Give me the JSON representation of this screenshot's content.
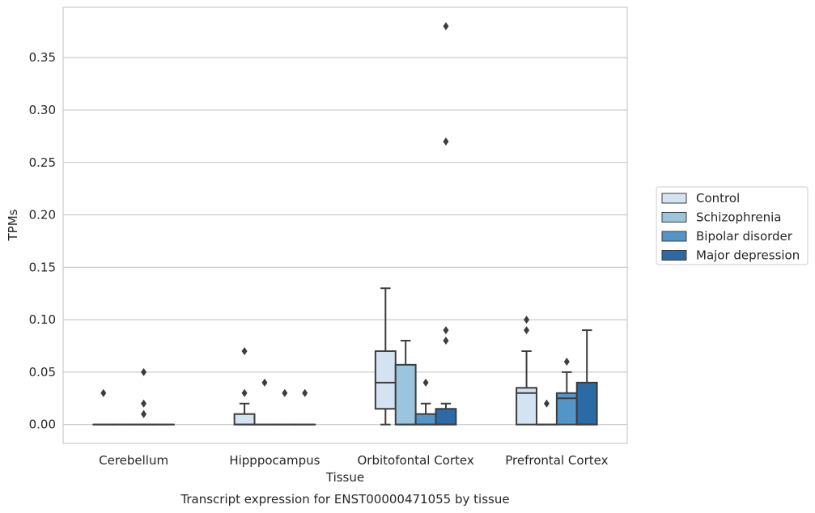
{
  "chart_data": {
    "type": "box",
    "title": "",
    "caption": "Transcript expression for ENST00000471055 by tissue",
    "xlabel": "Tissue",
    "ylabel": "TPMs",
    "ylim": [
      -0.018,
      0.398
    ],
    "yticks": [
      "0.00",
      "0.05",
      "0.10",
      "0.15",
      "0.20",
      "0.25",
      "0.30",
      "0.35"
    ],
    "grid": "horizontal",
    "legend_position": "right",
    "categories": [
      "Cerebellum",
      "Hipppocampus",
      "Orbitofontal Cortex",
      "Prefrontal Cortex"
    ],
    "series": [
      {
        "name": "Control",
        "color": "#d3e3f2",
        "boxes": [
          {
            "category": "Cerebellum",
            "whisker_low": 0,
            "q1": 0,
            "median": 0,
            "q3": 0,
            "whisker_high": 0,
            "outliers": [
              0.03
            ]
          },
          {
            "category": "Hipppocampus",
            "whisker_low": 0,
            "q1": 0,
            "median": 0,
            "q3": 0.01,
            "whisker_high": 0.02,
            "outliers": [
              0.03,
              0.07
            ]
          },
          {
            "category": "Orbitofontal Cortex",
            "whisker_low": 0,
            "q1": 0.015,
            "median": 0.04,
            "q3": 0.07,
            "whisker_high": 0.13,
            "outliers": []
          },
          {
            "category": "Prefrontal Cortex",
            "whisker_low": 0,
            "q1": 0,
            "median": 0.03,
            "q3": 0.035,
            "whisker_high": 0.07,
            "outliers": [
              0.09,
              0.1
            ]
          }
        ]
      },
      {
        "name": "Schizophrenia",
        "color": "#9bc5df",
        "boxes": [
          {
            "category": "Cerebellum",
            "whisker_low": 0,
            "q1": 0,
            "median": 0,
            "q3": 0,
            "whisker_high": 0,
            "outliers": []
          },
          {
            "category": "Hipppocampus",
            "whisker_low": 0,
            "q1": 0,
            "median": 0,
            "q3": 0,
            "whisker_high": 0,
            "outliers": [
              0.04
            ]
          },
          {
            "category": "Orbitofontal Cortex",
            "whisker_low": 0,
            "q1": 0,
            "median": 0,
            "q3": 0.057,
            "whisker_high": 0.08,
            "outliers": []
          },
          {
            "category": "Prefrontal Cortex",
            "whisker_low": 0,
            "q1": 0,
            "median": 0,
            "q3": 0,
            "whisker_high": 0,
            "outliers": [
              0.02
            ]
          }
        ]
      },
      {
        "name": "Bipolar disorder",
        "color": "#5495c7",
        "boxes": [
          {
            "category": "Cerebellum",
            "whisker_low": 0,
            "q1": 0,
            "median": 0,
            "q3": 0,
            "whisker_high": 0,
            "outliers": [
              0.01,
              0.02,
              0.05
            ]
          },
          {
            "category": "Hipppocampus",
            "whisker_low": 0,
            "q1": 0,
            "median": 0,
            "q3": 0,
            "whisker_high": 0,
            "outliers": [
              0.03
            ]
          },
          {
            "category": "Orbitofontal Cortex",
            "whisker_low": 0,
            "q1": 0,
            "median": 0,
            "q3": 0.01,
            "whisker_high": 0.02,
            "outliers": [
              0.04
            ]
          },
          {
            "category": "Prefrontal Cortex",
            "whisker_low": 0,
            "q1": 0,
            "median": 0.025,
            "q3": 0.03,
            "whisker_high": 0.05,
            "outliers": [
              0.06
            ]
          }
        ]
      },
      {
        "name": "Major depression",
        "color": "#2b6aa5",
        "boxes": [
          {
            "category": "Cerebellum",
            "whisker_low": 0,
            "q1": 0,
            "median": 0,
            "q3": 0,
            "whisker_high": 0,
            "outliers": []
          },
          {
            "category": "Hipppocampus",
            "whisker_low": 0,
            "q1": 0,
            "median": 0,
            "q3": 0,
            "whisker_high": 0,
            "outliers": [
              0.03
            ]
          },
          {
            "category": "Orbitofontal Cortex",
            "whisker_low": 0,
            "q1": 0,
            "median": 0,
            "q3": 0.015,
            "whisker_high": 0.02,
            "outliers": [
              0.08,
              0.09,
              0.27,
              0.38
            ]
          },
          {
            "category": "Prefrontal Cortex",
            "whisker_low": 0,
            "q1": 0,
            "median": 0,
            "q3": 0.04,
            "whisker_high": 0.09,
            "outliers": []
          }
        ]
      }
    ]
  }
}
